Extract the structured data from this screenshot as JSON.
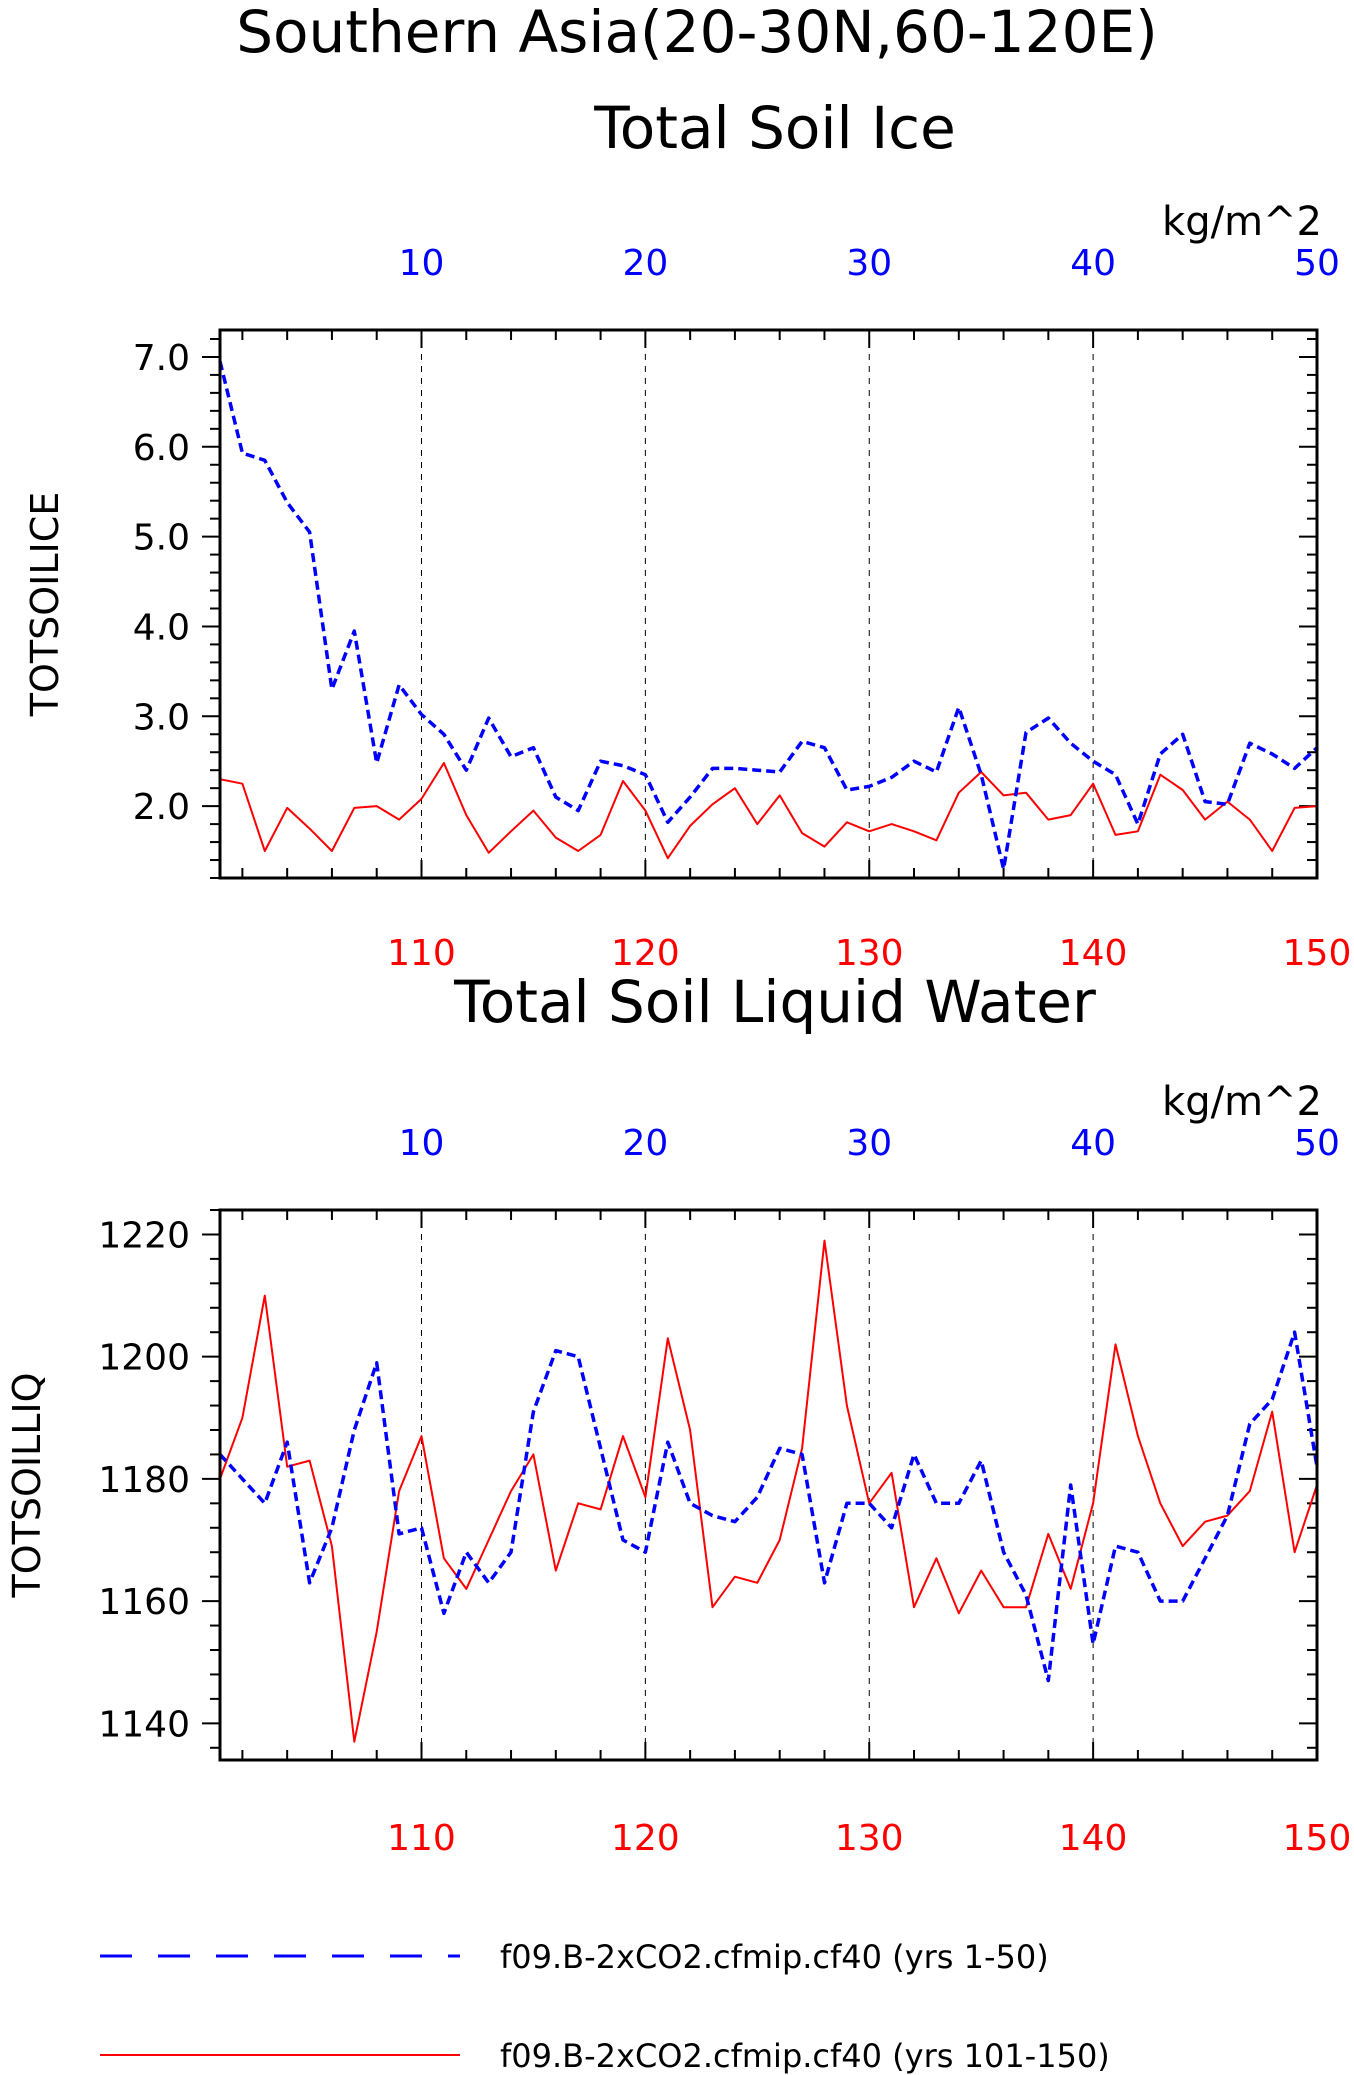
{
  "title": {
    "line1": "Southern Asia(20-30N,60-120E)"
  },
  "chart_data": [
    {
      "type": "line",
      "title": "Total Soil Ice",
      "units": "kg/m^2",
      "ylabel": "TOTSOILICE",
      "ylim": [
        1.2,
        7.3
      ],
      "yticks": [
        "7.0",
        "6.0",
        "5.0",
        "4.0",
        "3.0",
        "2.0"
      ],
      "top_axis": {
        "range": [
          1,
          50
        ],
        "ticks": [
          "10",
          "20",
          "30",
          "40",
          "50"
        ],
        "color": "#0000ff"
      },
      "bottom_axis": {
        "range": [
          101,
          150
        ],
        "ticks": [
          "110",
          "120",
          "130",
          "140",
          "150"
        ],
        "color": "#ff0000"
      },
      "grid": "dashed vertical at 10/110, 20/120, 30/130, 40/140",
      "series": [
        {
          "name": "f09.B-2xCO2.cfmip.cf40 (yrs 1-50)",
          "axis": "top",
          "color": "#0000ff",
          "style": "dashed",
          "x": [
            1,
            2,
            3,
            4,
            5,
            6,
            7,
            8,
            9,
            10,
            11,
            12,
            13,
            14,
            15,
            16,
            17,
            18,
            19,
            20,
            21,
            22,
            23,
            24,
            25,
            26,
            27,
            28,
            29,
            30,
            31,
            32,
            33,
            34,
            35,
            36,
            37,
            38,
            39,
            40,
            41,
            42,
            43,
            44,
            45,
            46,
            47,
            48,
            49,
            50
          ],
          "values": [
            6.95,
            5.93,
            5.85,
            5.38,
            5.05,
            3.3,
            3.95,
            2.48,
            3.35,
            3.02,
            2.8,
            2.4,
            2.98,
            2.55,
            2.65,
            2.1,
            1.95,
            2.5,
            2.45,
            2.35,
            1.82,
            2.1,
            2.42,
            2.42,
            2.4,
            2.38,
            2.72,
            2.65,
            2.18,
            2.22,
            2.32,
            2.5,
            2.38,
            3.1,
            2.35,
            1.3,
            2.82,
            2.98,
            2.7,
            2.5,
            2.35,
            1.8,
            2.58,
            2.8,
            2.05,
            2.02,
            2.7,
            2.58,
            2.42,
            2.65
          ]
        },
        {
          "name": "f09.B-2xCO2.cfmip.cf40 (yrs 101-150)",
          "axis": "bottom",
          "color": "#ff0000",
          "style": "solid",
          "x": [
            101,
            102,
            103,
            104,
            105,
            106,
            107,
            108,
            109,
            110,
            111,
            112,
            113,
            114,
            115,
            116,
            117,
            118,
            119,
            120,
            121,
            122,
            123,
            124,
            125,
            126,
            127,
            128,
            129,
            130,
            131,
            132,
            133,
            134,
            135,
            136,
            137,
            138,
            139,
            140,
            141,
            142,
            143,
            144,
            145,
            146,
            147,
            148,
            149,
            150
          ],
          "values": [
            2.3,
            2.25,
            1.5,
            1.98,
            1.75,
            1.5,
            1.98,
            2.0,
            1.85,
            2.08,
            2.48,
            1.9,
            1.48,
            1.72,
            1.95,
            1.65,
            1.5,
            1.68,
            2.28,
            1.95,
            1.42,
            1.78,
            2.02,
            2.2,
            1.8,
            2.12,
            1.7,
            1.55,
            1.82,
            1.72,
            1.8,
            1.72,
            1.62,
            2.15,
            2.38,
            2.12,
            2.15,
            1.85,
            1.9,
            2.25,
            1.68,
            1.72,
            2.35,
            2.18,
            1.85,
            2.05,
            1.85,
            1.5,
            1.98,
            2.0
          ]
        }
      ]
    },
    {
      "type": "line",
      "title": "Total Soil Liquid Water",
      "units": "kg/m^2",
      "ylabel": "TOTSOILLIQ",
      "ylim": [
        1134,
        1224
      ],
      "yticks": [
        "1220",
        "1200",
        "1180",
        "1160",
        "1140"
      ],
      "top_axis": {
        "range": [
          1,
          50
        ],
        "ticks": [
          "10",
          "20",
          "30",
          "40",
          "50"
        ],
        "color": "#0000ff"
      },
      "bottom_axis": {
        "range": [
          101,
          150
        ],
        "ticks": [
          "110",
          "120",
          "130",
          "140",
          "150"
        ],
        "color": "#ff0000"
      },
      "grid": "dashed vertical at 10/110, 20/120, 30/130, 40/140",
      "series": [
        {
          "name": "f09.B-2xCO2.cfmip.cf40 (yrs 1-50)",
          "axis": "top",
          "color": "#0000ff",
          "style": "dashed",
          "x": [
            1,
            2,
            3,
            4,
            5,
            6,
            7,
            8,
            9,
            10,
            11,
            12,
            13,
            14,
            15,
            16,
            17,
            18,
            19,
            20,
            21,
            22,
            23,
            24,
            25,
            26,
            27,
            28,
            29,
            30,
            31,
            32,
            33,
            34,
            35,
            36,
            37,
            38,
            39,
            40,
            41,
            42,
            43,
            44,
            45,
            46,
            47,
            48,
            49,
            50
          ],
          "values": [
            1184,
            1180,
            1176,
            1186,
            1163,
            1172,
            1188,
            1199,
            1171,
            1172,
            1158,
            1168,
            1163,
            1168,
            1191,
            1201,
            1200,
            1185,
            1170,
            1168,
            1186,
            1176,
            1174,
            1173,
            1177,
            1185,
            1184,
            1163,
            1176,
            1176,
            1172,
            1184,
            1176,
            1176,
            1183,
            1168,
            1161,
            1147,
            1179,
            1153,
            1169,
            1168,
            1160,
            1160,
            1167,
            1174,
            1189,
            1193,
            1204,
            1182
          ]
        },
        {
          "name": "f09.B-2xCO2.cfmip.cf40 (yrs 101-150)",
          "axis": "bottom",
          "color": "#ff0000",
          "style": "solid",
          "x": [
            101,
            102,
            103,
            104,
            105,
            106,
            107,
            108,
            109,
            110,
            111,
            112,
            113,
            114,
            115,
            116,
            117,
            118,
            119,
            120,
            121,
            122,
            123,
            124,
            125,
            126,
            127,
            128,
            129,
            130,
            131,
            132,
            133,
            134,
            135,
            136,
            137,
            138,
            139,
            140,
            141,
            142,
            143,
            144,
            145,
            146,
            147,
            148,
            149,
            150
          ],
          "values": [
            1180,
            1190,
            1210,
            1182,
            1183,
            1169,
            1137,
            1155,
            1178,
            1187,
            1167,
            1162,
            1170,
            1178,
            1184,
            1165,
            1176,
            1175,
            1187,
            1177,
            1203,
            1188,
            1159,
            1164,
            1163,
            1170,
            1185,
            1219,
            1192,
            1176,
            1181,
            1159,
            1167,
            1158,
            1165,
            1159,
            1159,
            1171,
            1162,
            1176,
            1202,
            1187,
            1176,
            1169,
            1173,
            1174,
            1178,
            1191,
            1168,
            1179
          ]
        }
      ]
    }
  ],
  "legend": [
    {
      "label": "f09.B-2xCO2.cfmip.cf40 (yrs 1-50)",
      "color": "#0000ff",
      "style": "dashed"
    },
    {
      "label": "f09.B-2xCO2.cfmip.cf40 (yrs 101-150)",
      "color": "#ff0000",
      "style": "solid"
    }
  ]
}
